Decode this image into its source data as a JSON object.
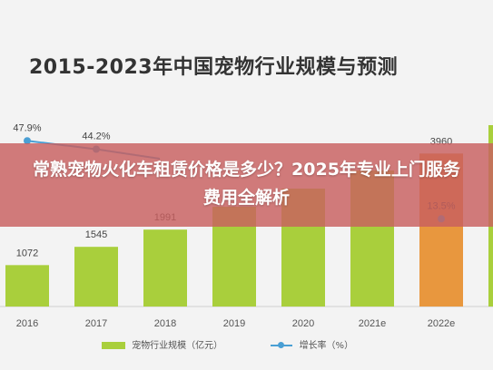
{
  "chart_data": {
    "type": "bar",
    "title": "2015-2023年中国宠物行业规模与预测",
    "categories": [
      "2016",
      "2017",
      "2018",
      "2019",
      "2020",
      "2021e",
      "2022e",
      "2023e"
    ],
    "series": [
      {
        "name": "宠物行业规模（亿元）",
        "values": [
          1072,
          1545,
          1991,
          null,
          null,
          null,
          3960,
          null
        ],
        "value_labels": [
          "1072",
          "1545",
          "1991",
          "",
          "",
          "",
          "3960",
          ""
        ],
        "color": "#a9cf3c",
        "highlight_color": "#e8973e"
      },
      {
        "name": "增长率（%）",
        "type": "line",
        "values": [
          47.9,
          44.2,
          null,
          null,
          null,
          null,
          13.5,
          null
        ],
        "value_labels": [
          "47.9%",
          "44.2%",
          "",
          "",
          "",
          "",
          "13.5%",
          ""
        ],
        "color": "#4a9fd4"
      }
    ],
    "xlabel": "",
    "ylabel": "",
    "grid": false,
    "legend_position": "bottom"
  },
  "overlay": {
    "text": "常熟宠物火化车租赁价格是多少？2025年专业上门服务费用全解析",
    "color": "#c85f5f"
  }
}
